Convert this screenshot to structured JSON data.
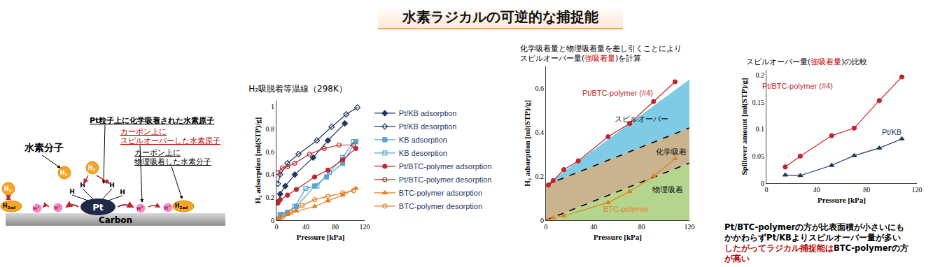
{
  "title": "水素ラジカルの可逆的な捕捉能",
  "diagram": {
    "h2_molecule": "水素分子",
    "pt_label": "Pt粒子上に化学吸着された水素原子",
    "spillover_label": [
      "カーボン上に",
      "スピルオーバーした水素原子"
    ],
    "physisorb_label": [
      "カーボン上に",
      "物理吸着した水素分子"
    ],
    "substrate": "Carbon",
    "pt": "Pt",
    "h_atom": "H",
    "h2": {
      "base": "H",
      "sub": "2"
    },
    "h2ad": {
      "base": "H",
      "sub": "2ad"
    },
    "h_radical": {
      "base": "H",
      "sup": "•"
    }
  },
  "chart_data": [
    {
      "type": "line",
      "title": [
        [
          {
            "text": "H₂吸脱着等温線（298K）"
          }
        ]
      ],
      "x_label": "Pressure [kPa]",
      "y_label": "H₂ adsorption [ml(STP)/g]",
      "xlim": [
        0,
        120
      ],
      "xticks": [
        0,
        40,
        80,
        120
      ],
      "ylim": [
        0,
        1.05
      ],
      "yticks": [
        0,
        0.2,
        0.4,
        0.6,
        0.8,
        1
      ],
      "grid": false,
      "legend": "right",
      "series": [
        {
          "name": "Pt/KB adsorption",
          "color": "#1f3864",
          "marker": "diamond",
          "line_style": "solid",
          "x": [
            2,
            5,
            12,
            25,
            50,
            70,
            93
          ],
          "values": [
            0.16,
            0.23,
            0.3,
            0.4,
            0.55,
            0.7,
            0.85
          ]
        },
        {
          "name": "Pt/KB desorption",
          "color": "#1f3864",
          "marker": "diamond-open",
          "line_style": "solid",
          "x": [
            110,
            95,
            75,
            55,
            30,
            15,
            5,
            2
          ],
          "values": [
            0.99,
            0.93,
            0.82,
            0.7,
            0.58,
            0.5,
            0.4,
            0.32
          ]
        },
        {
          "name": "KB adsorption",
          "color": "#5ba3d0",
          "marker": "square",
          "line_style": "solid",
          "x": [
            2,
            5,
            15,
            27,
            52,
            68,
            90,
            108
          ],
          "values": [
            0.01,
            0.05,
            0.07,
            0.12,
            0.3,
            0.38,
            0.5,
            0.69
          ]
        },
        {
          "name": "KB desorption",
          "color": "#5ba3d0",
          "marker": "square-open",
          "line_style": "solid",
          "x": [
            105,
            90,
            72,
            55,
            40,
            25,
            10,
            2
          ],
          "values": [
            0.69,
            0.55,
            0.42,
            0.3,
            0.28,
            0.12,
            0.05,
            0.01
          ]
        },
        {
          "name": "Pt/BTC-polymer adsorption",
          "color": "#c0272d",
          "marker": "circle",
          "line_style": "solid",
          "x": [
            2,
            5,
            15,
            27,
            52,
            70,
            90,
            108
          ],
          "values": [
            0.15,
            0.18,
            0.22,
            0.27,
            0.38,
            0.44,
            0.53,
            0.63
          ]
        },
        {
          "name": "Pt/BTC-polymer desorption",
          "color": "#c0272d",
          "marker": "circle-open",
          "line_style": "solid",
          "x": [
            105,
            85,
            65,
            45,
            25,
            15,
            8,
            2
          ],
          "values": [
            0.66,
            0.66,
            0.63,
            0.58,
            0.5,
            0.47,
            0.46,
            0.42
          ]
        },
        {
          "name": "BTC-polymer adsorption",
          "color": "#e87d1e",
          "marker": "triangle-up",
          "line_style": "solid",
          "x": [
            2,
            5,
            15,
            27,
            52,
            70,
            90,
            108
          ],
          "values": [
            0,
            0.02,
            0.05,
            0.08,
            0.12,
            0.17,
            0.22,
            0.28
          ]
        },
        {
          "name": "BTC-polymer desorption",
          "color": "#e87d1e",
          "marker": "circle-open",
          "line_style": "solid",
          "x": [
            105,
            90,
            70,
            52,
            35,
            20,
            8,
            2
          ],
          "values": [
            0.26,
            0.24,
            0.21,
            0.18,
            0.13,
            0.07,
            0.03,
            0
          ]
        }
      ]
    },
    {
      "type": "line",
      "title": [
        [
          {
            "text": "化学吸着量と物理吸着量を差し引くことにより"
          }
        ],
        [
          {
            "text": "スピルオーバー量("
          },
          {
            "text": "強吸着量",
            "color": "#c00000"
          },
          {
            "text": ")を計算"
          }
        ]
      ],
      "x_label": "Pressure [kPa]",
      "y_label": "H₂ adsorption [ml(STP)/g]",
      "xlim": [
        0,
        120
      ],
      "xticks": [
        0,
        40,
        80,
        120
      ],
      "ylim": [
        0,
        0.7
      ],
      "yticks": [
        0,
        0.2,
        0.4,
        0.6
      ],
      "grid": false,
      "bands": [
        {
          "name": "物理吸着",
          "type": "area",
          "color": "#b5d58f",
          "x": [
            0,
            120
          ],
          "lower": [
            0,
            0
          ],
          "upper": [
            0,
            0.26
          ],
          "label_x": 102,
          "label_y": 0.14
        },
        {
          "name": "化学吸着",
          "type": "area",
          "color": "#c9b48f",
          "x": [
            0,
            120
          ],
          "lower": [
            0,
            0.26
          ],
          "upper": [
            0.16,
            0.42
          ],
          "label_x": 105,
          "label_y": 0.31
        },
        {
          "name": "スピルオーバー",
          "type": "area",
          "color": "#7fcbe6",
          "x": [
            0,
            120
          ],
          "lower": [
            0.16,
            0.42
          ],
          "upper": [
            0.16,
            0.64
          ],
          "label_x": 80,
          "label_y": 0.46
        }
      ],
      "series": [
        {
          "type": "line",
          "color": "#000000",
          "marker": "none",
          "line_style": "dashed",
          "x": [
            0,
            120
          ],
          "values": [
            0.16,
            0.42
          ]
        },
        {
          "type": "line",
          "color": "#000000",
          "marker": "none",
          "line_style": "dashed",
          "x": [
            0,
            120
          ],
          "values": [
            0,
            0.26
          ]
        },
        {
          "name": "Pt/BTC-polymer (#4)",
          "type": "line",
          "color": "#c0272d",
          "marker": "circle",
          "line_style": "solid",
          "x": [
            2,
            6,
            15,
            27,
            52,
            70,
            90,
            108
          ],
          "values": [
            0.16,
            0.18,
            0.23,
            0.27,
            0.38,
            0.44,
            0.54,
            0.63
          ],
          "label_x": 60,
          "label_y": 0.58
        },
        {
          "name": "BTC-polymer",
          "type": "line",
          "color": "#e87d1e",
          "marker": "triangle-up",
          "line_style": "solid",
          "x": [
            2,
            6,
            15,
            52,
            70,
            90,
            108
          ],
          "values": [
            0,
            0.01,
            0.02,
            0.08,
            0.13,
            0.2,
            0.28
          ],
          "label_x": 67,
          "label_y": 0.05
        }
      ]
    },
    {
      "type": "line",
      "title": [
        [
          {
            "text": "スピルオーバー量("
          },
          {
            "text": "強吸着量",
            "color": "#c00000"
          },
          {
            "text": ")の比較"
          }
        ]
      ],
      "x_label": "Pressure [kPa]",
      "y_label": "Spillover amount [ml(STP)/g]",
      "xlim": [
        0,
        120
      ],
      "xticks": [
        0,
        40,
        80,
        120
      ],
      "ylim": [
        0,
        0.21
      ],
      "yticks": [
        0,
        0.05,
        0.1,
        0.15,
        0.2
      ],
      "grid": false,
      "series": [
        {
          "name": "Pt/BTC-polymer (#4)",
          "color": "#c0272d",
          "marker": "circle",
          "line_style": "solid",
          "x": [
            15,
            27,
            52,
            70,
            90,
            108
          ],
          "values": [
            0.03,
            0.05,
            0.088,
            0.102,
            0.153,
            0.197
          ],
          "label_x": 25,
          "label_y": 0.18
        },
        {
          "name": "Pt/KB",
          "color": "#1f3864",
          "marker": "triangle-up",
          "line_style": "solid",
          "x": [
            15,
            27,
            52,
            70,
            90,
            108
          ],
          "values": [
            0.015,
            0.014,
            0.033,
            0.051,
            0.065,
            0.082
          ],
          "label_x": 100,
          "label_y": 0.095
        }
      ]
    }
  ],
  "conclusion": [
    [
      {
        "text": "Pt/BTC-polymerの方が比表面積が小さいにも"
      }
    ],
    [
      {
        "text": "かかわらずPt/KBよりスピルオーバー量が多い"
      }
    ],
    [
      {
        "text": "したがってラジカル捕捉能は",
        "color": "#c00000"
      },
      {
        "text": "BTC-polymerの方"
      }
    ],
    [
      {
        "text": "が高い",
        "color": "#c00000"
      }
    ]
  ]
}
